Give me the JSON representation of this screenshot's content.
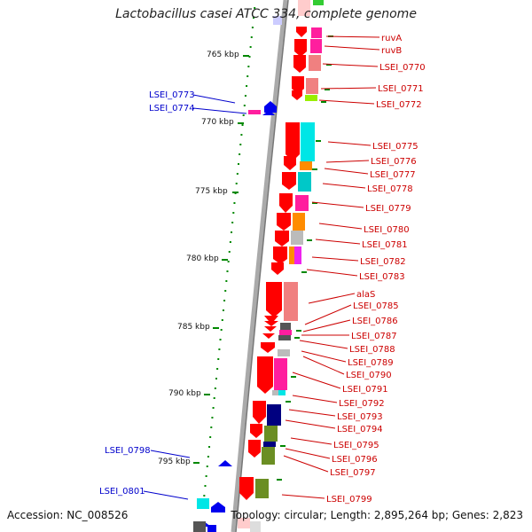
{
  "title": "Lactobacillus casei ATCC 334, complete genome",
  "footer": {
    "accession": "Accession: NC_008526",
    "topology": "Topology: circular; Length: 2,895,264 bp; Genes: 2,823"
  },
  "kbp_ticks": [
    {
      "label": "765 kbp"
    },
    {
      "label": "770 kbp"
    },
    {
      "label": "775 kbp"
    },
    {
      "label": "780 kbp"
    },
    {
      "label": "785 kbp"
    },
    {
      "label": "790 kbp"
    },
    {
      "label": "795 kbp"
    }
  ],
  "left_gene_labels": [
    {
      "name": "LSEI_0773",
      "color": "#0000cc"
    },
    {
      "name": "LSEI_0774",
      "color": "#0000cc"
    },
    {
      "name": "LSEI_0798",
      "color": "#0000cc"
    },
    {
      "name": "LSEI_0801",
      "color": "#0000cc"
    }
  ],
  "right_gene_labels": [
    {
      "name": "ruvA"
    },
    {
      "name": "ruvB"
    },
    {
      "name": "LSEI_0770"
    },
    {
      "name": "LSEI_0771"
    },
    {
      "name": "LSEI_0772"
    },
    {
      "name": "LSEI_0775"
    },
    {
      "name": "LSEI_0776"
    },
    {
      "name": "LSEI_0777"
    },
    {
      "name": "LSEI_0778"
    },
    {
      "name": "LSEI_0779"
    },
    {
      "name": "LSEI_0780"
    },
    {
      "name": "LSEI_0781"
    },
    {
      "name": "LSEI_0782"
    },
    {
      "name": "LSEI_0783"
    },
    {
      "name": "alaS"
    },
    {
      "name": "LSEI_0785"
    },
    {
      "name": "LSEI_0786"
    },
    {
      "name": "LSEI_0787"
    },
    {
      "name": "LSEI_0788"
    },
    {
      "name": "LSEI_0789"
    },
    {
      "name": "LSEI_0790"
    },
    {
      "name": "LSEI_0791"
    },
    {
      "name": "LSEI_0792"
    },
    {
      "name": "LSEI_0793"
    },
    {
      "name": "LSEI_0794"
    },
    {
      "name": "LSEI_0795"
    },
    {
      "name": "LSEI_0796"
    },
    {
      "name": "LSEI_0797"
    },
    {
      "name": "LSEI_0799"
    }
  ],
  "colors": {
    "forward_gene": "#ff0000",
    "reverse_gene": "#0000ee",
    "backbone": "#999999",
    "tick": "#007700",
    "right_label": "#cc0000",
    "left_label": "#0000cc"
  }
}
